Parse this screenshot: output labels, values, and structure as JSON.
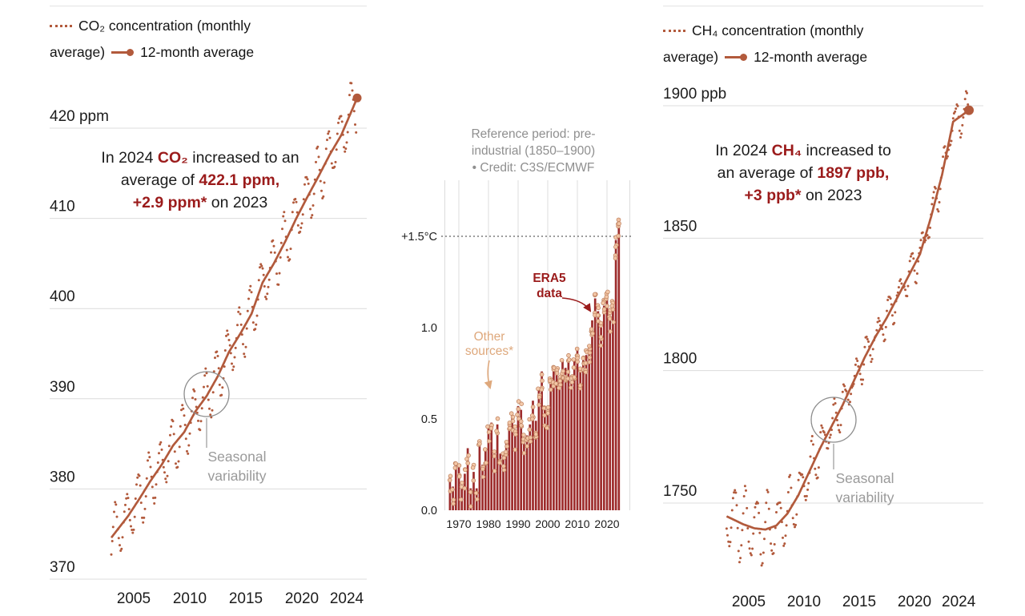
{
  "colors": {
    "terracotta": "#b25a3c",
    "dark_red": "#9b1c1c",
    "bar_red": "#9d2c2c",
    "dot_fill": "#f3c7a6",
    "dot_stroke": "#bf8260",
    "tan": "#dea87c",
    "grid": "#dcdcdc",
    "axis_text": "#1c1c1c",
    "gray_text": "#9a9a9a"
  },
  "chart_data": [
    {
      "id": "co2_concentration",
      "type": "line",
      "unit": "ppm",
      "legend": {
        "monthly_line1": "CO₂ concentration (monthly",
        "monthly_line2": "average)",
        "average": "12-month average"
      },
      "annotation_lines": [
        [
          {
            "t": "In 2024 "
          },
          {
            "t": "CO₂",
            "red": true
          },
          {
            "t": " increased to an"
          }
        ],
        [
          {
            "t": "average of "
          },
          {
            "t": "422.1 ppm,",
            "red": true
          }
        ],
        [
          {
            "t": "+2.9 ppm*",
            "red": true
          },
          {
            "t": " on 2023"
          }
        ]
      ],
      "seasonal_label": [
        "Seasonal",
        "variability"
      ],
      "y_ticks": [
        {
          "v": 420,
          "label": "420 ppm"
        },
        {
          "v": 410,
          "label": "410"
        },
        {
          "v": 400,
          "label": "400"
        },
        {
          "v": 390,
          "label": "390"
        },
        {
          "v": 380,
          "label": "380"
        },
        {
          "v": 370,
          "label": "370"
        }
      ],
      "x_ticks": [
        {
          "v": 2005,
          "label": "2005"
        },
        {
          "v": 2010,
          "label": "2010"
        },
        {
          "v": 2015,
          "label": "2015"
        },
        {
          "v": 2020,
          "label": "2020"
        },
        {
          "v": 2024,
          "label": "2024"
        }
      ],
      "ylim": [
        368,
        424
      ],
      "xlim": [
        2003,
        2025
      ],
      "years": [
        2003,
        2004,
        2005,
        2006,
        2007,
        2008,
        2009,
        2010,
        2011,
        2012,
        2013,
        2014,
        2015,
        2016,
        2017,
        2018,
        2019,
        2020,
        2021,
        2022,
        2023,
        2024
      ],
      "annual_average": [
        375.4,
        377.0,
        378.9,
        380.9,
        382.7,
        384.8,
        386.3,
        388.6,
        390.3,
        392.5,
        395.2,
        397.2,
        399.4,
        402.9,
        405.0,
        407.4,
        410.0,
        412.4,
        414.7,
        417.1,
        419.2,
        422.1
      ],
      "seasonal_amplitude": 2.9,
      "latest": {
        "year": 2024,
        "average": 422.1,
        "change_on_2023": 2.9
      }
    },
    {
      "id": "global_temperature_anomaly",
      "type": "bar",
      "unit": "°C",
      "header_lines": [
        "Reference period: pre-",
        "industrial (1850–1900)",
        "• Credit: C3S/ECMWF"
      ],
      "era5_label": [
        "ERA5",
        "data"
      ],
      "other_label": [
        "Other",
        "sources*"
      ],
      "threshold_c": 1.5,
      "y_ticks": [
        {
          "v": 1.5,
          "label": "+1.5°C"
        },
        {
          "v": 1.0,
          "label": "1.0"
        },
        {
          "v": 0.5,
          "label": "0.5"
        },
        {
          "v": 0.0,
          "label": "0.0"
        }
      ],
      "x_ticks": [
        1970,
        1980,
        1990,
        2000,
        2010,
        2020
      ],
      "ylim": [
        0,
        1.72
      ],
      "years": [
        1967,
        1968,
        1969,
        1970,
        1971,
        1972,
        1973,
        1974,
        1975,
        1976,
        1977,
        1978,
        1979,
        1980,
        1981,
        1982,
        1983,
        1984,
        1985,
        1986,
        1987,
        1988,
        1989,
        1990,
        1991,
        1992,
        1993,
        1994,
        1995,
        1996,
        1997,
        1998,
        1999,
        2000,
        2001,
        2002,
        2003,
        2004,
        2005,
        2006,
        2007,
        2008,
        2009,
        2010,
        2011,
        2012,
        2013,
        2014,
        2015,
        2016,
        2017,
        2018,
        2019,
        2020,
        2021,
        2022,
        2023,
        2024
      ],
      "era5_anomaly_c": [
        0.18,
        0.13,
        0.26,
        0.24,
        0.12,
        0.2,
        0.34,
        0.12,
        0.21,
        0.12,
        0.35,
        0.25,
        0.33,
        0.45,
        0.48,
        0.31,
        0.47,
        0.31,
        0.31,
        0.37,
        0.48,
        0.52,
        0.43,
        0.57,
        0.55,
        0.38,
        0.41,
        0.47,
        0.6,
        0.49,
        0.66,
        0.76,
        0.55,
        0.55,
        0.71,
        0.76,
        0.77,
        0.7,
        0.82,
        0.78,
        0.81,
        0.7,
        0.82,
        0.89,
        0.76,
        0.82,
        0.85,
        0.9,
        1.04,
        1.16,
        1.09,
        1.0,
        1.12,
        1.16,
        1.06,
        1.12,
        1.48,
        1.6
      ]
    },
    {
      "id": "ch4_concentration",
      "type": "line",
      "unit": "ppb",
      "legend": {
        "monthly_line1": "CH₄ concentration (monthly",
        "monthly_line2": "average)",
        "average": "12-month average"
      },
      "annotation_lines": [
        [
          {
            "t": "In 2024 "
          },
          {
            "t": "CH₄",
            "red": true
          },
          {
            "t": " increased to"
          }
        ],
        [
          {
            "t": "an average of "
          },
          {
            "t": "1897 ppb,",
            "red": true
          }
        ],
        [
          {
            "t": "+3 ppb*",
            "red": true
          },
          {
            "t": " on 2023"
          }
        ]
      ],
      "seasonal_label": [
        "Seasonal",
        "variability"
      ],
      "y_ticks": [
        {
          "v": 1900,
          "label": "1900 ppb"
        },
        {
          "v": 1850,
          "label": "1850"
        },
        {
          "v": 1800,
          "label": "1800"
        },
        {
          "v": 1750,
          "label": "1750"
        }
      ],
      "x_ticks": [
        {
          "v": 2005,
          "label": "2005"
        },
        {
          "v": 2010,
          "label": "2010"
        },
        {
          "v": 2015,
          "label": "2015"
        },
        {
          "v": 2020,
          "label": "2020"
        },
        {
          "v": 2024,
          "label": "2024"
        }
      ],
      "ylim": [
        1725,
        1905
      ],
      "xlim": [
        2003,
        2025
      ],
      "years": [
        2003,
        2004,
        2005,
        2006,
        2007,
        2008,
        2009,
        2010,
        2011,
        2012,
        2013,
        2014,
        2015,
        2016,
        2017,
        2018,
        2019,
        2020,
        2021,
        2022,
        2023,
        2024
      ],
      "annual_average": [
        1744,
        1742,
        1740.5,
        1740,
        1741.5,
        1746,
        1753,
        1762,
        1771,
        1779,
        1787,
        1796,
        1805,
        1813,
        1820,
        1828,
        1836,
        1844,
        1858,
        1874,
        1894,
        1897
      ],
      "seasonal_amplitude_range": [
        12.5,
        5.5
      ],
      "latest": {
        "year": 2024,
        "average": 1897,
        "change_on_2023": 3
      }
    }
  ]
}
